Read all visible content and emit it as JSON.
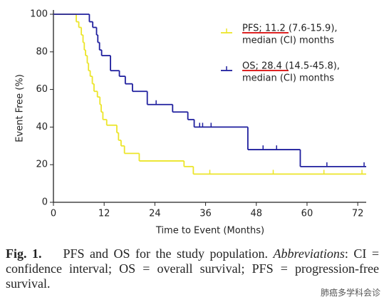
{
  "chart_data": {
    "type": "line",
    "step": true,
    "xlabel": "Time to Event (Months)",
    "ylabel": "Event Free (%)",
    "xlim": [
      0,
      74
    ],
    "ylim": [
      0,
      100
    ],
    "xticks": [
      0,
      12,
      24,
      36,
      48,
      60,
      72
    ],
    "yticks": [
      0,
      20,
      40,
      60,
      80,
      100
    ],
    "legend": "top-right",
    "series": [
      {
        "name": "PFS; 11.2 (7.6-15.9),",
        "note": "median (CI) months",
        "color": "#ece52a",
        "x": [
          0,
          5.4,
          6.0,
          6.6,
          7.0,
          7.3,
          7.6,
          8.0,
          8.3,
          8.7,
          9.2,
          9.6,
          10.4,
          11.0,
          11.3,
          11.7,
          12.6,
          15.0,
          15.4,
          16.0,
          16.8,
          20.3,
          30.9,
          33.1
        ],
        "values": [
          100,
          96,
          93,
          89,
          85,
          81,
          78,
          74,
          70,
          67,
          63,
          59,
          56,
          52,
          48,
          44,
          41,
          37,
          33,
          30,
          26,
          22,
          19,
          15
        ],
        "censored_x": [
          37,
          52,
          64,
          73
        ],
        "censored_values": [
          15,
          15,
          15,
          15
        ]
      },
      {
        "name": "OS; 28.4 (14.5-45.8),",
        "note": "median (CI) months",
        "color": "#1f1f9e",
        "x": [
          0,
          8.5,
          9.3,
          10.2,
          10.5,
          10.9,
          11.4,
          13.5,
          15.6,
          17.0,
          18.7,
          22.2,
          28.2,
          31.8,
          33.3,
          46.0,
          58.4
        ],
        "values": [
          100,
          96,
          93,
          89,
          85,
          81,
          78,
          70,
          67,
          63,
          59,
          52,
          48,
          44,
          40,
          28,
          19
        ],
        "censored_x": [
          24.3,
          34.6,
          35.3,
          37.3,
          49.6,
          52.8,
          64.7,
          73.5
        ],
        "censored_values": [
          52,
          40,
          40,
          40,
          28,
          28,
          19,
          19
        ]
      }
    ]
  },
  "caption": {
    "label": "Fig. 1.",
    "text": "PFS and OS for the study population.",
    "italic": "Abbreviations",
    "rest": ": CI = confidence interval; OS = overall survival; PFS = progression-free survival."
  },
  "watermark": "肺癌多学科会诊"
}
